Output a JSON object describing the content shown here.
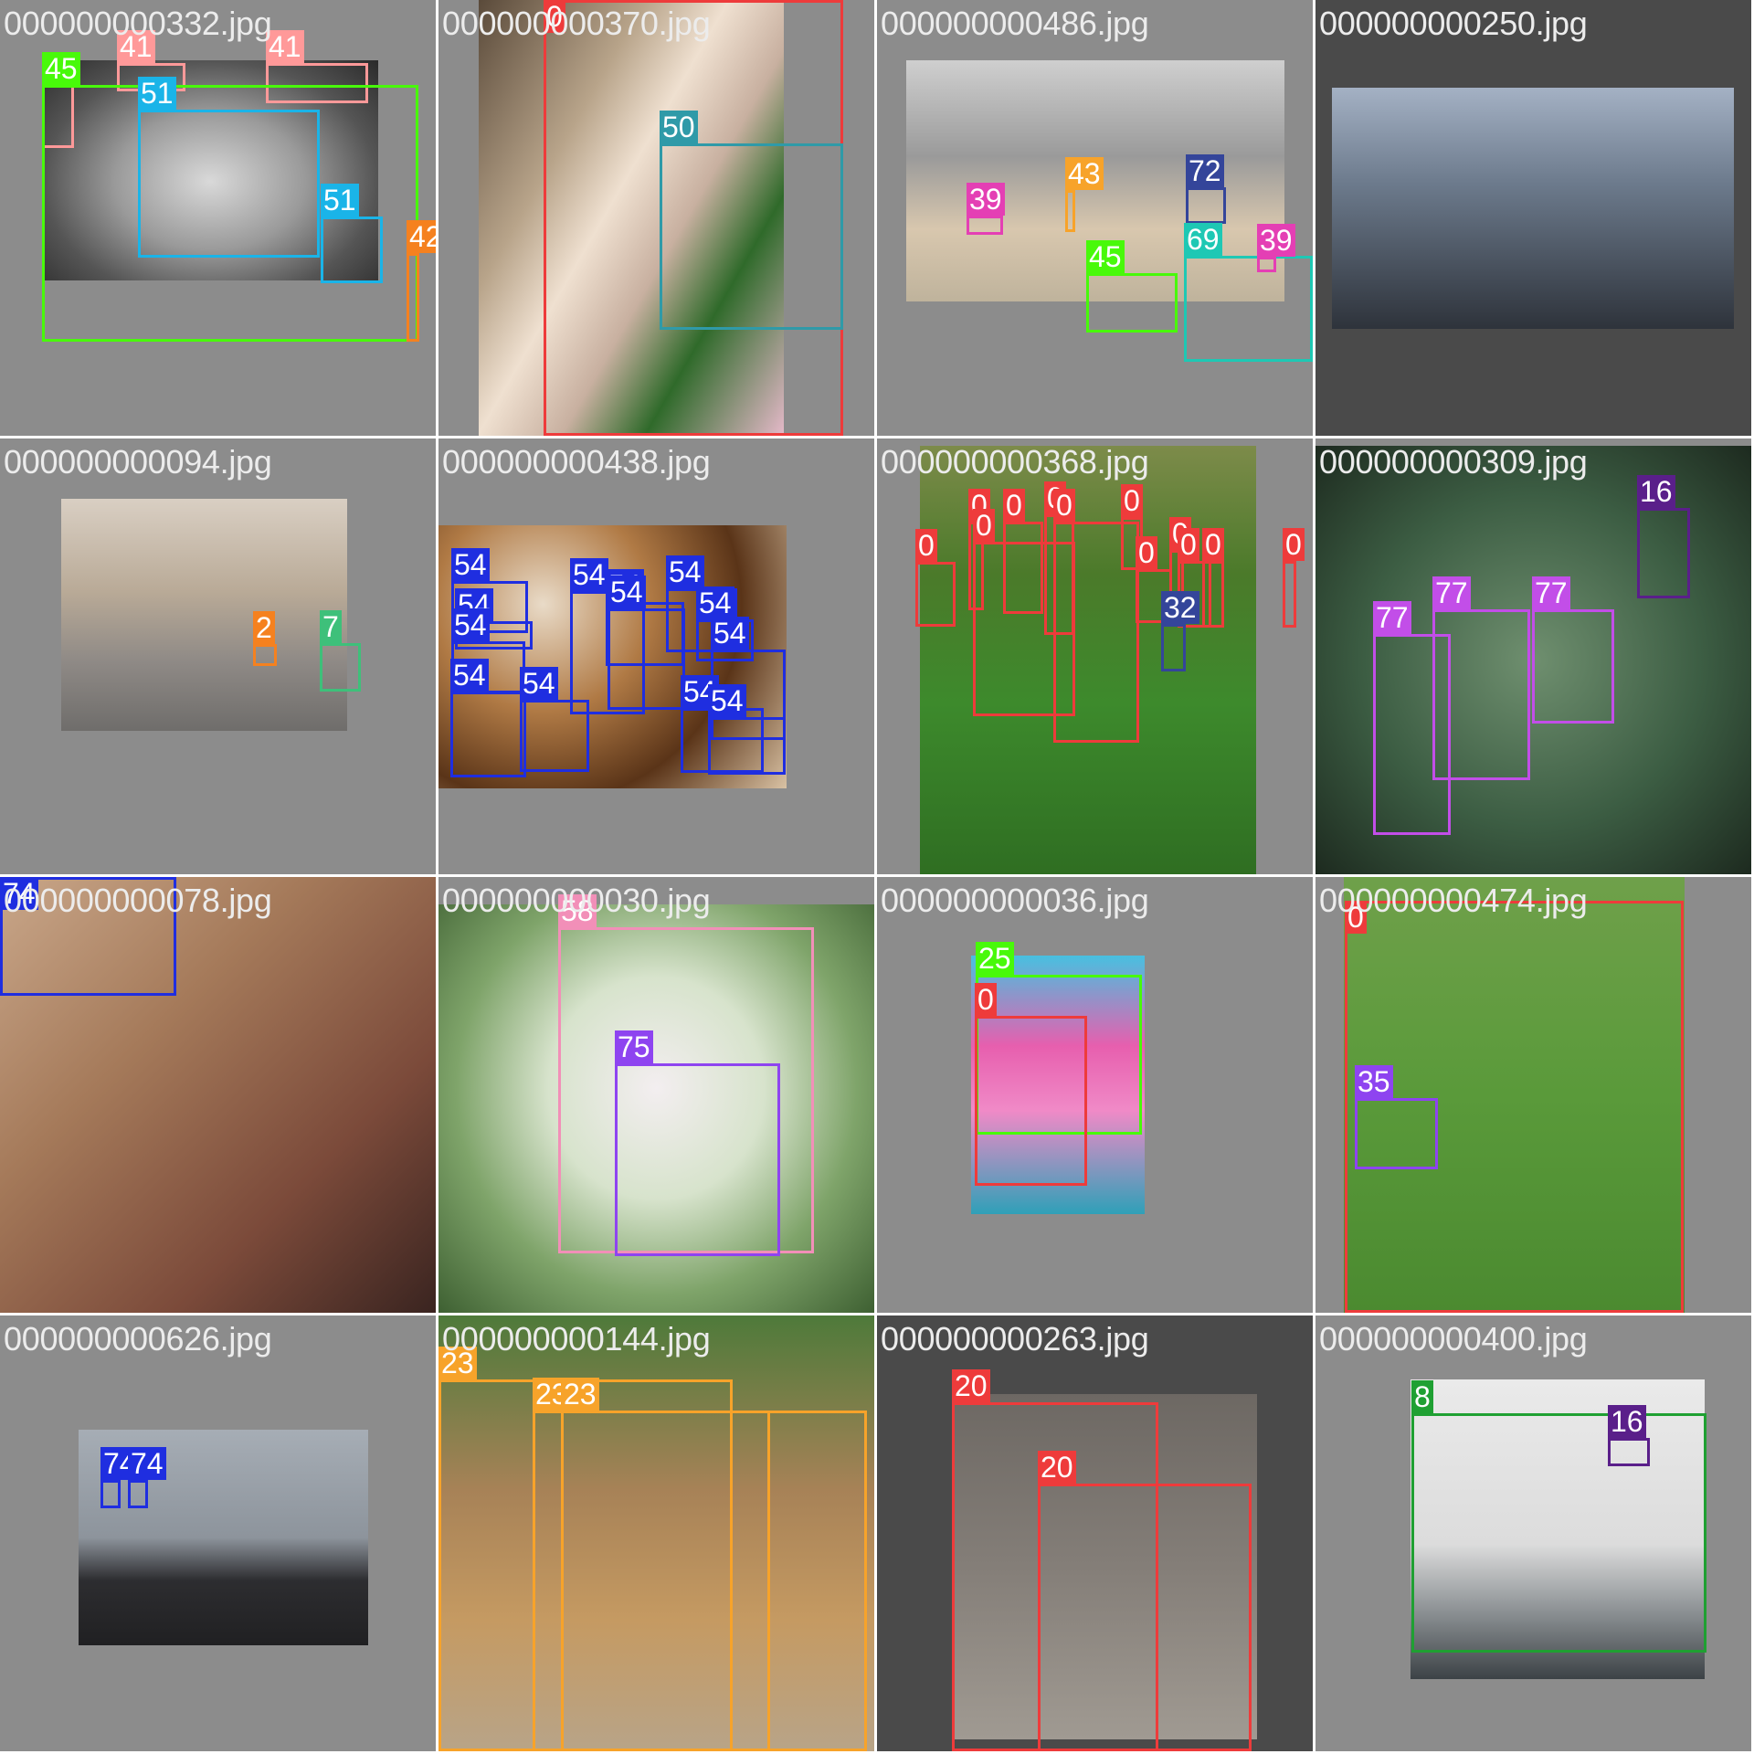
{
  "tiles": [
    {
      "name": "000000000332.jpg",
      "bg": "#8c8c8c",
      "photo_class": "p-food",
      "boxes": [
        {
          "label": "41",
          "color": "#ff9999"
        },
        {
          "label": "41",
          "color": "#ff9999"
        },
        {
          "label": "41",
          "color": "#ff9999"
        },
        {
          "label": "45",
          "color": "#48f90a"
        },
        {
          "label": "51",
          "color": "#1ab4e8"
        },
        {
          "label": "51",
          "color": "#1ab4e8"
        },
        {
          "label": "42",
          "color": "#f5811f"
        }
      ]
    },
    {
      "name": "000000000370.jpg",
      "bg": "#8c8c8c",
      "photo_class": "p-girl",
      "boxes": [
        {
          "label": "0",
          "color": "#ee3b3b"
        },
        {
          "label": "50",
          "color": "#2f9aa8"
        }
      ]
    },
    {
      "name": "000000000486.jpg",
      "bg": "#8c8c8c",
      "photo_class": "p-kitchen",
      "boxes": [
        {
          "label": "39",
          "color": "#e43fb4"
        },
        {
          "label": "43",
          "color": "#f7a32a"
        },
        {
          "label": "72",
          "color": "#34459a"
        },
        {
          "label": "69",
          "color": "#1ec8b4"
        },
        {
          "label": "39",
          "color": "#e43fb4"
        },
        {
          "label": "45",
          "color": "#48f90a"
        }
      ]
    },
    {
      "name": "000000000250.jpg",
      "bg": "#4a4a4a",
      "photo_class": "p-city",
      "boxes": []
    },
    {
      "name": "000000000094.jpg",
      "bg": "#8c8c8c",
      "photo_class": "p-street",
      "boxes": [
        {
          "label": "2",
          "color": "#f5811f"
        },
        {
          "label": "7",
          "color": "#3ec07a"
        }
      ]
    },
    {
      "name": "000000000438.jpg",
      "bg": "#8c8c8c",
      "photo_class": "p-donut",
      "boxes": [
        {
          "label": "54",
          "color": "#1f2ee0"
        },
        {
          "label": "54",
          "color": "#1f2ee0"
        },
        {
          "label": "54",
          "color": "#1f2ee0"
        },
        {
          "label": "54",
          "color": "#1f2ee0"
        },
        {
          "label": "54",
          "color": "#1f2ee0"
        },
        {
          "label": "54",
          "color": "#1f2ee0"
        },
        {
          "label": "54",
          "color": "#1f2ee0"
        },
        {
          "label": "54",
          "color": "#1f2ee0"
        },
        {
          "label": "54",
          "color": "#1f2ee0"
        },
        {
          "label": "54",
          "color": "#1f2ee0"
        },
        {
          "label": "54",
          "color": "#1f2ee0"
        },
        {
          "label": "54",
          "color": "#1f2ee0"
        },
        {
          "label": "54",
          "color": "#1f2ee0"
        }
      ]
    },
    {
      "name": "000000000368.jpg",
      "bg": "#8c8c8c",
      "photo_class": "p-soccer",
      "boxes": [
        {
          "label": "0",
          "color": "#ee3b3b"
        },
        {
          "label": "0",
          "color": "#ee3b3b"
        },
        {
          "label": "0",
          "color": "#ee3b3b"
        },
        {
          "label": "0",
          "color": "#ee3b3b"
        },
        {
          "label": "0",
          "color": "#ee3b3b"
        },
        {
          "label": "0",
          "color": "#ee3b3b"
        },
        {
          "label": "0",
          "color": "#ee3b3b"
        },
        {
          "label": "0",
          "color": "#ee3b3b"
        },
        {
          "label": "0",
          "color": "#ee3b3b"
        },
        {
          "label": "0",
          "color": "#ee3b3b"
        },
        {
          "label": "0",
          "color": "#ee3b3b"
        },
        {
          "label": "0",
          "color": "#ee3b3b"
        },
        {
          "label": "32",
          "color": "#34459a"
        }
      ]
    },
    {
      "name": "000000000309.jpg",
      "bg": "#8c8c8c",
      "photo_class": "p-bear",
      "boxes": [
        {
          "label": "16",
          "color": "#5a1f8a"
        },
        {
          "label": "77",
          "color": "#c24ee8"
        },
        {
          "label": "77",
          "color": "#c24ee8"
        },
        {
          "label": "77",
          "color": "#c24ee8"
        }
      ]
    },
    {
      "name": "000000000078.jpg",
      "bg": "#8c8c8c",
      "photo_class": "p-clock",
      "boxes": [
        {
          "label": "74",
          "color": "#1f2ee0"
        }
      ]
    },
    {
      "name": "000000000030.jpg",
      "bg": "#8c8c8c",
      "photo_class": "p-vase",
      "boxes": [
        {
          "label": "58",
          "color": "#f28fb8"
        },
        {
          "label": "75",
          "color": "#8e44f0"
        }
      ]
    },
    {
      "name": "000000000036.jpg",
      "bg": "#8c8c8c",
      "photo_class": "p-umbrella",
      "boxes": [
        {
          "label": "25",
          "color": "#48f90a"
        },
        {
          "label": "0",
          "color": "#ee3b3b"
        }
      ]
    },
    {
      "name": "000000000474.jpg",
      "bg": "#8c8c8c",
      "photo_class": "p-boy",
      "boxes": [
        {
          "label": "0",
          "color": "#ee3b3b"
        },
        {
          "label": "35",
          "color": "#8e44f0"
        }
      ]
    },
    {
      "name": "000000000626.jpg",
      "bg": "#8c8c8c",
      "photo_class": "p-tower",
      "boxes": [
        {
          "label": "74",
          "color": "#1f2ee0"
        },
        {
          "label": "74",
          "color": "#1f2ee0"
        }
      ]
    },
    {
      "name": "000000000144.jpg",
      "bg": "#8c8c8c",
      "photo_class": "p-giraffe",
      "boxes": [
        {
          "label": "23",
          "color": "#f7a32a"
        },
        {
          "label": "23",
          "color": "#f7a32a"
        },
        {
          "label": "23",
          "color": "#f7a32a"
        }
      ]
    },
    {
      "name": "000000000263.jpg",
      "bg": "#4a4a4a",
      "photo_class": "p-elephant",
      "boxes": [
        {
          "label": "20",
          "color": "#ee3b3b"
        },
        {
          "label": "20",
          "color": "#ee3b3b"
        }
      ]
    },
    {
      "name": "000000000400.jpg",
      "bg": "#8c8c8c",
      "photo_class": "p-boat",
      "boxes": [
        {
          "label": "8",
          "color": "#1fa032"
        },
        {
          "label": "16",
          "color": "#5a1f8a"
        }
      ]
    }
  ]
}
